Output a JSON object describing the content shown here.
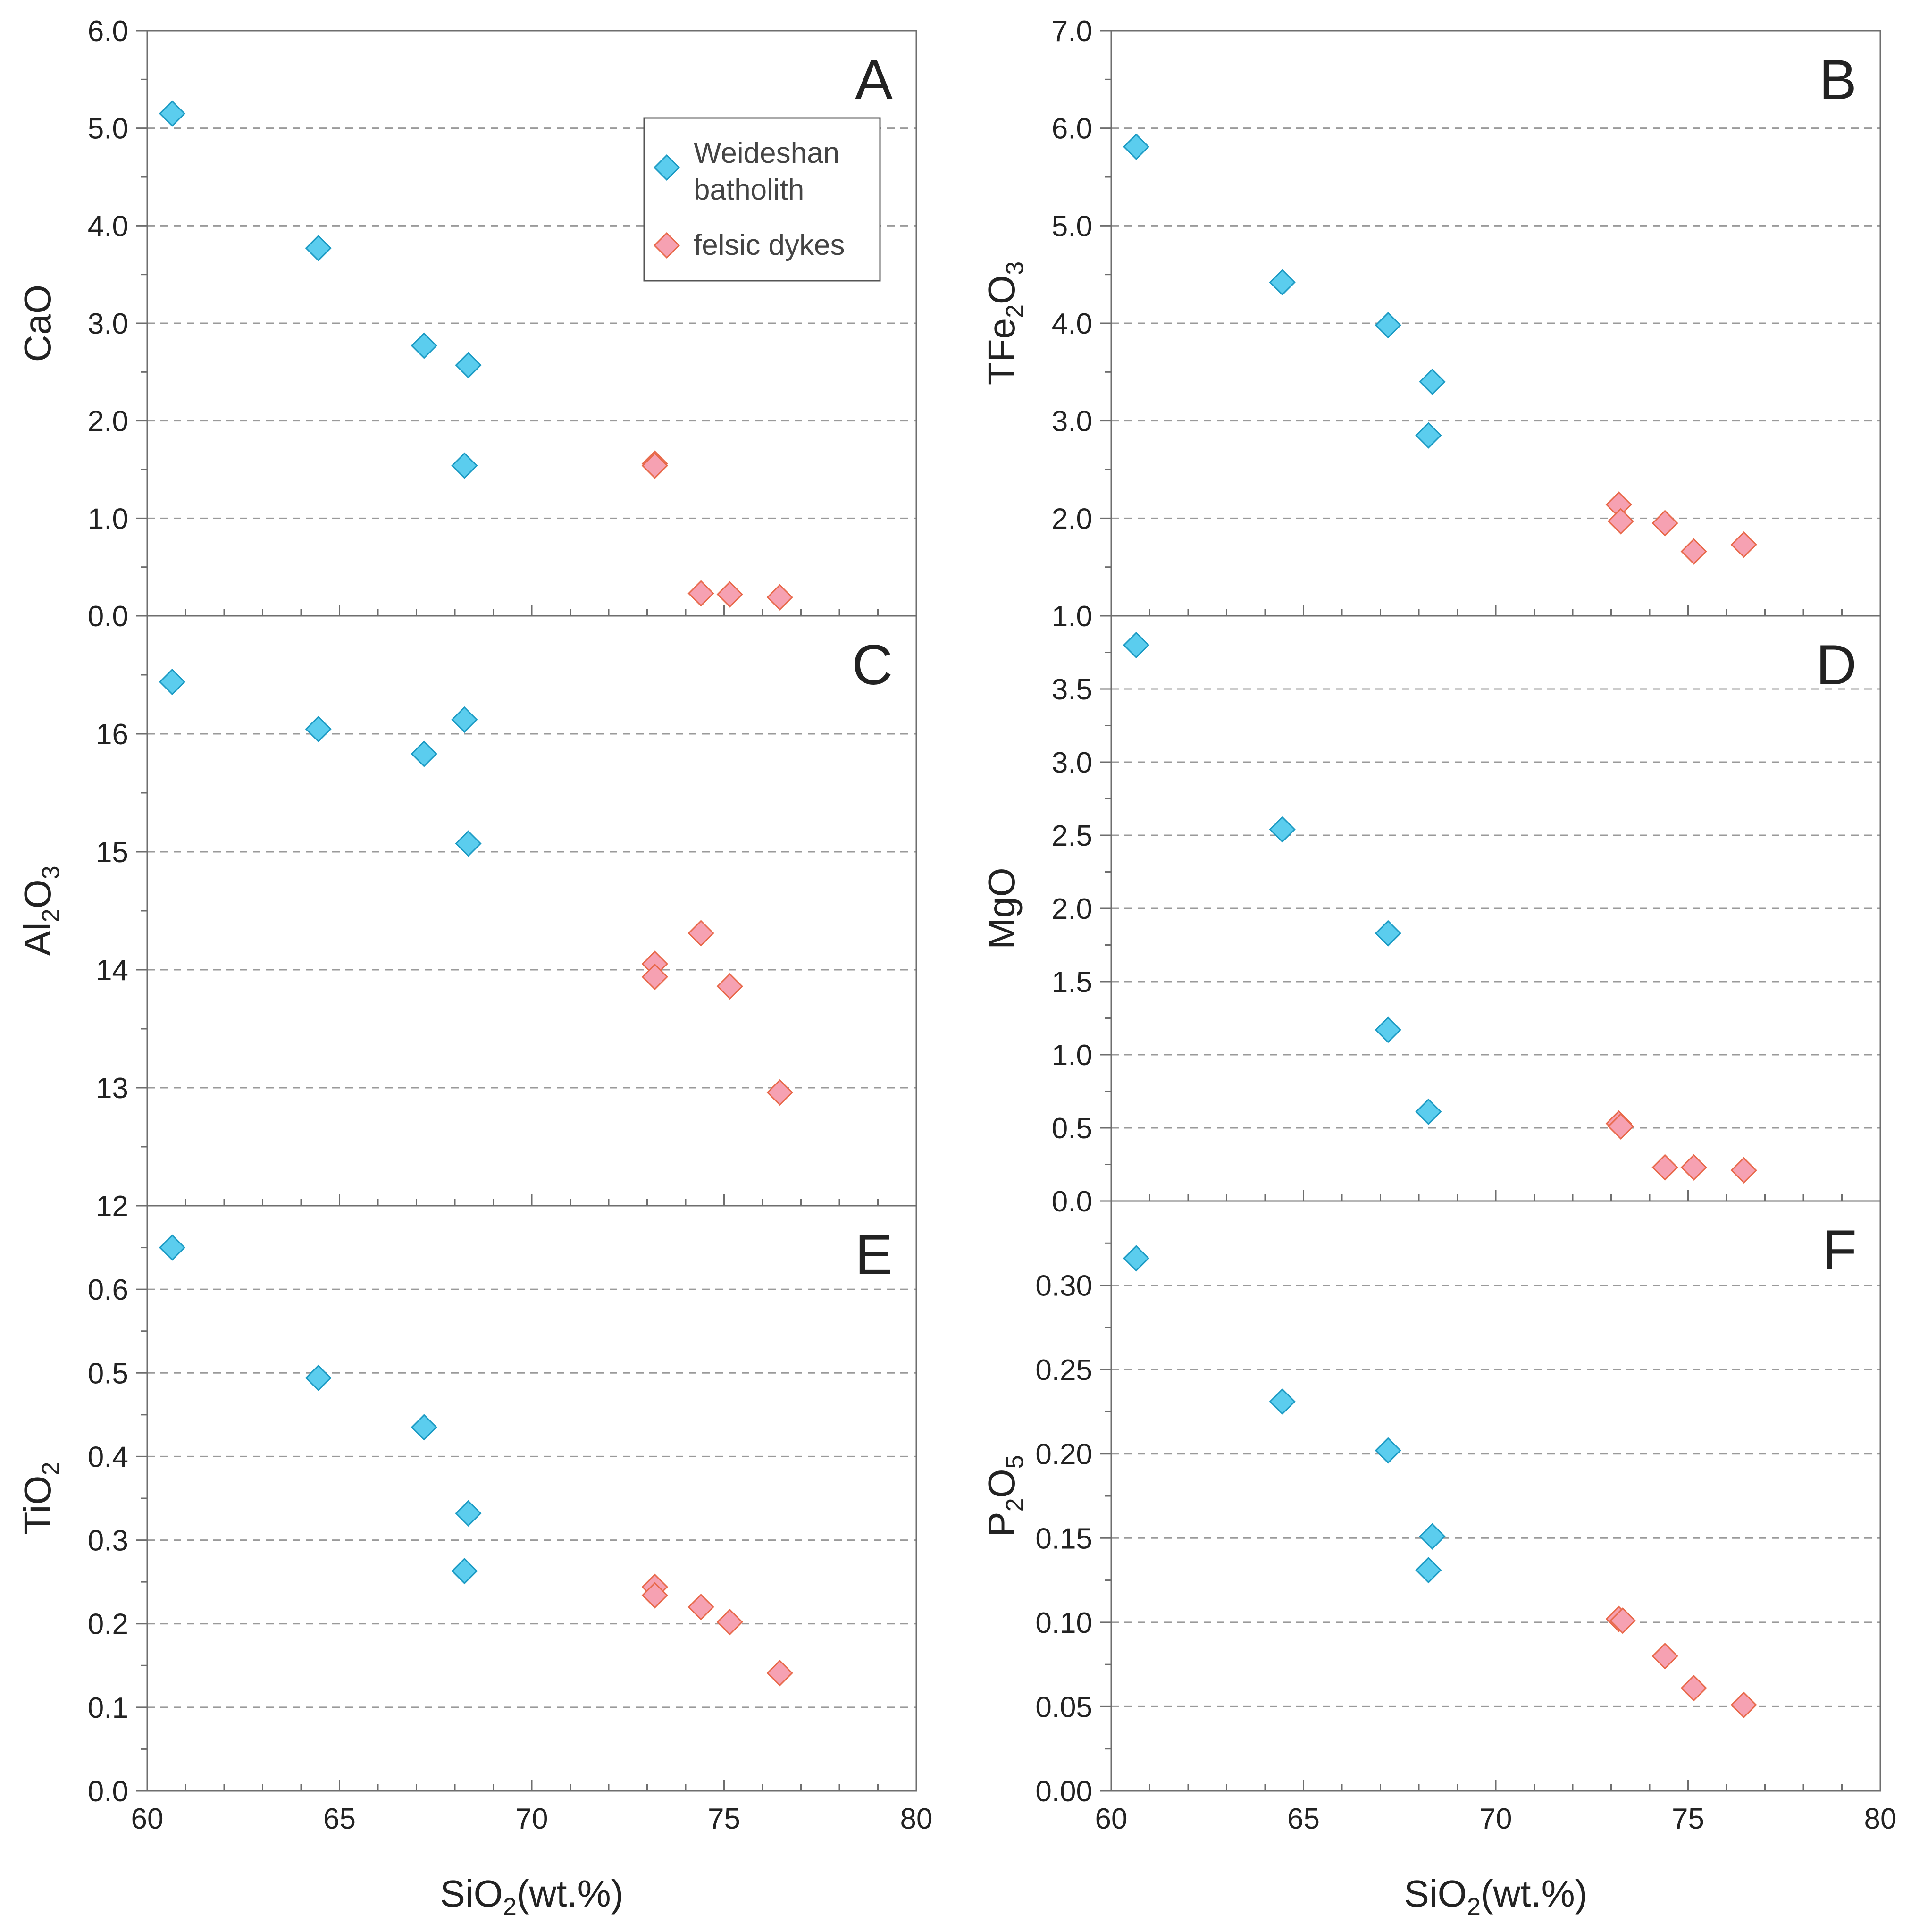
{
  "figure": {
    "xlabel": "SiO2(wt.%)",
    "xlabel_parts": {
      "main": "SiO",
      "sub": "2",
      "tail": "(wt.%)"
    }
  },
  "legend": {
    "items": [
      {
        "series": "weideshan",
        "lines": [
          "Weideshan",
          "batholith"
        ]
      },
      {
        "series": "felsic",
        "lines": [
          "felsic dykes"
        ]
      }
    ]
  },
  "styles": {
    "weideshan": {
      "fill": "#5BCDEE",
      "stroke": "#1D9BC4"
    },
    "felsic": {
      "fill": "#F6A1B2",
      "stroke": "#E86A4C"
    },
    "grid_color": "#9a9a9a",
    "axis_color": "#6e6e6e"
  },
  "chart_data": [
    {
      "panel": "A",
      "type": "scatter",
      "ylabel": "CaO",
      "ylabel_parts": [
        {
          "t": "CaO"
        }
      ],
      "xlim": [
        60,
        80
      ],
      "ylim": [
        0,
        6
      ],
      "xticks": [
        60,
        65,
        70,
        75,
        80
      ],
      "yticks": [
        0,
        1,
        2,
        3,
        4,
        5,
        6
      ],
      "yticklabels": [
        "0.0",
        "1.0",
        "2.0",
        "3.0",
        "4.0",
        "5.0",
        "6.0"
      ],
      "show_xticklabels": false,
      "legend": true,
      "series": [
        {
          "name": "Weideshan batholith",
          "key": "weideshan",
          "x": [
            60.65,
            64.45,
            67.2,
            68.35,
            68.25
          ],
          "y": [
            5.15,
            3.77,
            2.77,
            2.57,
            1.54
          ]
        },
        {
          "name": "felsic dykes",
          "key": "felsic",
          "x": [
            73.2,
            73.2,
            74.4,
            75.15,
            76.45
          ],
          "y": [
            1.56,
            1.54,
            0.23,
            0.22,
            0.19
          ]
        }
      ]
    },
    {
      "panel": "B",
      "type": "scatter",
      "ylabel": "TFe2O3",
      "ylabel_parts": [
        {
          "t": "TFe"
        },
        {
          "t": "2",
          "sub": true
        },
        {
          "t": "O"
        },
        {
          "t": "3",
          "sub": true
        }
      ],
      "xlim": [
        60,
        80
      ],
      "ylim": [
        1,
        7
      ],
      "xticks": [
        60,
        65,
        70,
        75,
        80
      ],
      "yticks": [
        1,
        2,
        3,
        4,
        5,
        6,
        7
      ],
      "yticklabels": [
        "1.0",
        "2.0",
        "3.0",
        "4.0",
        "5.0",
        "6.0",
        "7.0"
      ],
      "show_xticklabels": false,
      "legend": false,
      "series": [
        {
          "name": "Weideshan batholith",
          "key": "weideshan",
          "x": [
            60.65,
            64.45,
            67.2,
            68.35,
            68.25
          ],
          "y": [
            5.81,
            4.42,
            3.98,
            3.4,
            2.85
          ]
        },
        {
          "name": "felsic dykes",
          "key": "felsic",
          "x": [
            73.2,
            73.25,
            74.4,
            75.15,
            76.45
          ],
          "y": [
            2.14,
            1.97,
            1.95,
            1.66,
            1.73
          ]
        }
      ]
    },
    {
      "panel": "C",
      "type": "scatter",
      "ylabel": "Al2O3",
      "ylabel_parts": [
        {
          "t": "Al"
        },
        {
          "t": "2",
          "sub": true
        },
        {
          "t": "O"
        },
        {
          "t": "3",
          "sub": true
        }
      ],
      "xlim": [
        60,
        80
      ],
      "ylim": [
        12,
        17
      ],
      "xticks": [
        60,
        65,
        70,
        75,
        80
      ],
      "yticks": [
        12,
        13,
        14,
        15,
        16
      ],
      "yticklabels": [
        "12",
        "13",
        "14",
        "15",
        "16"
      ],
      "show_xticklabels": false,
      "legend": false,
      "series": [
        {
          "name": "Weideshan batholith",
          "key": "weideshan",
          "x": [
            60.65,
            64.45,
            67.2,
            68.25,
            68.35
          ],
          "y": [
            16.44,
            16.04,
            15.83,
            16.12,
            15.07
          ]
        },
        {
          "name": "felsic dykes",
          "key": "felsic",
          "x": [
            73.2,
            73.2,
            74.4,
            75.15,
            76.45
          ],
          "y": [
            14.05,
            13.94,
            14.31,
            13.86,
            12.96
          ]
        }
      ]
    },
    {
      "panel": "D",
      "type": "scatter",
      "ylabel": "MgO",
      "ylabel_parts": [
        {
          "t": "MgO"
        }
      ],
      "xlim": [
        60,
        80
      ],
      "ylim": [
        0,
        4
      ],
      "xticks": [
        60,
        65,
        70,
        75,
        80
      ],
      "yticks": [
        0,
        0.5,
        1,
        1.5,
        2,
        2.5,
        3,
        3.5
      ],
      "yticklabels": [
        "0.0",
        "0.5",
        "1.0",
        "1.5",
        "2.0",
        "2.5",
        "3.0",
        "3.5"
      ],
      "show_xticklabels": false,
      "legend": false,
      "series": [
        {
          "name": "Weideshan batholith",
          "key": "weideshan",
          "x": [
            60.65,
            64.45,
            67.2,
            67.2,
            68.25
          ],
          "y": [
            3.8,
            2.54,
            1.83,
            1.17,
            0.61
          ]
        },
        {
          "name": "felsic dykes",
          "key": "felsic",
          "x": [
            73.2,
            73.25,
            74.4,
            75.15,
            76.45
          ],
          "y": [
            0.53,
            0.51,
            0.23,
            0.23,
            0.21
          ]
        }
      ]
    },
    {
      "panel": "E",
      "type": "scatter",
      "ylabel": "TiO2",
      "ylabel_parts": [
        {
          "t": "TiO"
        },
        {
          "t": "2",
          "sub": true
        }
      ],
      "xlim": [
        60,
        80
      ],
      "ylim": [
        0,
        0.7
      ],
      "xticks": [
        60,
        65,
        70,
        75,
        80
      ],
      "yticks": [
        0,
        0.1,
        0.2,
        0.3,
        0.4,
        0.5,
        0.6
      ],
      "yticklabels": [
        "0.0",
        "0.1",
        "0.2",
        "0.3",
        "0.4",
        "0.5",
        "0.6"
      ],
      "show_xticklabels": true,
      "legend": false,
      "series": [
        {
          "name": "Weideshan batholith",
          "key": "weideshan",
          "x": [
            60.65,
            64.45,
            67.2,
            68.35,
            68.25
          ],
          "y": [
            0.65,
            0.494,
            0.435,
            0.332,
            0.263
          ]
        },
        {
          "name": "felsic dykes",
          "key": "felsic",
          "x": [
            73.2,
            73.2,
            74.4,
            75.15,
            76.45
          ],
          "y": [
            0.244,
            0.234,
            0.22,
            0.202,
            0.141
          ]
        }
      ]
    },
    {
      "panel": "F",
      "type": "scatter",
      "ylabel": "P2O5",
      "ylabel_parts": [
        {
          "t": "P"
        },
        {
          "t": "2",
          "sub": true
        },
        {
          "t": "O"
        },
        {
          "t": "5",
          "sub": true
        }
      ],
      "xlim": [
        60,
        80
      ],
      "ylim": [
        0,
        0.35
      ],
      "xticks": [
        60,
        65,
        70,
        75,
        80
      ],
      "yticks": [
        0,
        0.05,
        0.1,
        0.15,
        0.2,
        0.25,
        0.3
      ],
      "yticklabels": [
        "0.00",
        "0.05",
        "0.10",
        "0.15",
        "0.20",
        "0.25",
        "0.30"
      ],
      "show_xticklabels": true,
      "legend": false,
      "series": [
        {
          "name": "Weideshan batholith",
          "key": "weideshan",
          "x": [
            60.65,
            64.45,
            67.2,
            68.35,
            68.25
          ],
          "y": [
            0.316,
            0.231,
            0.202,
            0.151,
            0.131
          ]
        },
        {
          "name": "felsic dykes",
          "key": "felsic",
          "x": [
            73.2,
            73.3,
            74.4,
            75.15,
            76.45
          ],
          "y": [
            0.102,
            0.101,
            0.08,
            0.061,
            0.051
          ]
        }
      ]
    }
  ]
}
